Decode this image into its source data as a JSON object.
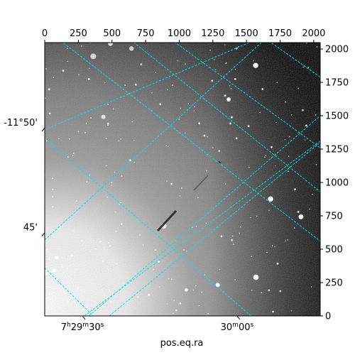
{
  "chart_data": {
    "type": "image",
    "xlabel": "pos.eq.ra",
    "ylabel": "",
    "pixel_axes": {
      "x_ticks": [
        0,
        250,
        500,
        750,
        1000,
        1250,
        1500,
        1750,
        2000
      ],
      "y_ticks": [
        0,
        250,
        500,
        750,
        1000,
        1250,
        1500,
        1750,
        2000
      ],
      "xlim": [
        0,
        2048
      ],
      "ylim": [
        0,
        2048
      ]
    },
    "ra_ticks": [
      {
        "h": "7",
        "m": "29",
        "s": "30",
        "px": 280
      },
      {
        "h": "",
        "m": "30",
        "s": "00",
        "px": 1430
      }
    ],
    "dec_ticks": [
      {
        "label": "-11°50'",
        "py": 1410
      },
      {
        "label": "45'",
        "py": 625
      }
    ],
    "grid": "dashed-cyan",
    "grid_color": "#00e5e5",
    "colormap": "gray"
  }
}
